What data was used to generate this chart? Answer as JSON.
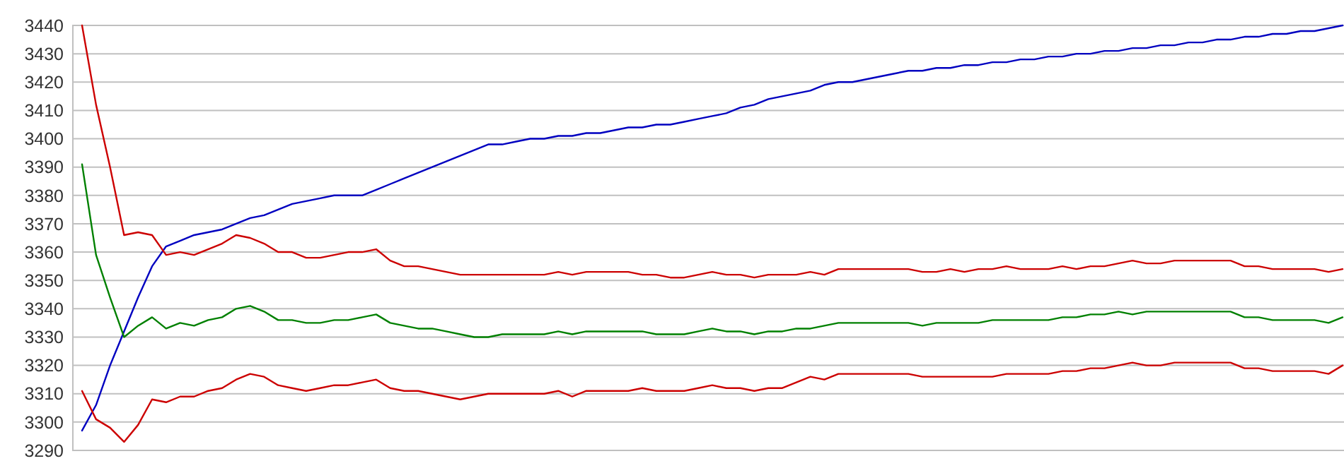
{
  "chart_data": {
    "type": "line",
    "categories": [
      null,
      null,
      null,
      null,
      null,
      null,
      null,
      null,
      null,
      null,
      null,
      null,
      null,
      null,
      null,
      null,
      null,
      null,
      null,
      null,
      null,
      null,
      null,
      null,
      null,
      null,
      null,
      null,
      null,
      null,
      null,
      null,
      null,
      null,
      null,
      null,
      null,
      null,
      null,
      null,
      null,
      null,
      null,
      null,
      null,
      null,
      null,
      null,
      null,
      null,
      null,
      null,
      null,
      null,
      null,
      null,
      null,
      null,
      null,
      null,
      null,
      null,
      null,
      null,
      null,
      null,
      null,
      null,
      null,
      null,
      null,
      null,
      null,
      null,
      null,
      null,
      null,
      null,
      null,
      null,
      null,
      null,
      null,
      null,
      null,
      null,
      null,
      null,
      null,
      null,
      null
    ],
    "ylim": [
      3290,
      3440
    ],
    "yticks": [
      3290,
      3300,
      3310,
      3320,
      3330,
      3340,
      3350,
      3360,
      3370,
      3380,
      3390,
      3400,
      3410,
      3420,
      3430,
      3440
    ],
    "grid": "y",
    "tick_labels": "y",
    "marker": "none",
    "line_style": "solid",
    "series": [
      {
        "color": "#0000c0",
        "values": [
          3297,
          3306,
          3320,
          3332,
          3344,
          3355,
          3362,
          3364,
          3366,
          3367,
          3368,
          3370,
          3372,
          3373,
          3375,
          3377,
          3378,
          3379,
          3380,
          3380,
          3380,
          3382,
          3384,
          3386,
          3388,
          3390,
          3392,
          3394,
          3396,
          3398,
          3398,
          3399,
          3400,
          3400,
          3401,
          3401,
          3402,
          3402,
          3403,
          3404,
          3404,
          3405,
          3405,
          3406,
          3407,
          3408,
          3409,
          3411,
          3412,
          3414,
          3415,
          3416,
          3417,
          3419,
          3420,
          3420,
          3421,
          3422,
          3423,
          3424,
          3424,
          3425,
          3425,
          3426,
          3426,
          3427,
          3427,
          3428,
          3428,
          3429,
          3429,
          3430,
          3430,
          3431,
          3431,
          3432,
          3432,
          3433,
          3433,
          3434,
          3434,
          3435,
          3435,
          3436,
          3436,
          3437,
          3437,
          3438,
          3438,
          3439,
          3440
        ]
      },
      {
        "color": "#cc0000",
        "values": [
          3440,
          3412,
          3390,
          3366,
          3367,
          3366,
          3359,
          3360,
          3359,
          3361,
          3363,
          3366,
          3365,
          3363,
          3360,
          3360,
          3358,
          3358,
          3359,
          3360,
          3360,
          3361,
          3357,
          3355,
          3355,
          3354,
          3353,
          3352,
          3352,
          3352,
          3352,
          3352,
          3352,
          3352,
          3353,
          3352,
          3353,
          3353,
          3353,
          3353,
          3352,
          3352,
          3351,
          3351,
          3352,
          3353,
          3352,
          3352,
          3351,
          3352,
          3352,
          3352,
          3353,
          3352,
          3354,
          3354,
          3354,
          3354,
          3354,
          3354,
          3353,
          3353,
          3354,
          3353,
          3354,
          3354,
          3355,
          3354,
          3354,
          3354,
          3355,
          3354,
          3355,
          3355,
          3356,
          3357,
          3356,
          3356,
          3357,
          3357,
          3357,
          3357,
          3357,
          3355,
          3355,
          3354,
          3354,
          3354,
          3354,
          3353,
          3354
        ]
      },
      {
        "color": "#008000",
        "values": [
          3391,
          3359,
          3344,
          3330,
          3334,
          3337,
          3333,
          3335,
          3334,
          3336,
          3337,
          3340,
          3341,
          3339,
          3336,
          3336,
          3335,
          3335,
          3336,
          3336,
          3337,
          3338,
          3335,
          3334,
          3333,
          3333,
          3332,
          3331,
          3330,
          3330,
          3331,
          3331,
          3331,
          3331,
          3332,
          3331,
          3332,
          3332,
          3332,
          3332,
          3332,
          3331,
          3331,
          3331,
          3332,
          3333,
          3332,
          3332,
          3331,
          3332,
          3332,
          3333,
          3333,
          3334,
          3335,
          3335,
          3335,
          3335,
          3335,
          3335,
          3334,
          3335,
          3335,
          3335,
          3335,
          3336,
          3336,
          3336,
          3336,
          3336,
          3337,
          3337,
          3338,
          3338,
          3339,
          3338,
          3339,
          3339,
          3339,
          3339,
          3339,
          3339,
          3339,
          3337,
          3337,
          3336,
          3336,
          3336,
          3336,
          3335,
          3337
        ]
      },
      {
        "color": "#cc0000",
        "values": [
          3311,
          3301,
          3298,
          3293,
          3299,
          3308,
          3307,
          3309,
          3309,
          3311,
          3312,
          3315,
          3317,
          3316,
          3313,
          3312,
          3311,
          3312,
          3313,
          3313,
          3314,
          3315,
          3312,
          3311,
          3311,
          3310,
          3309,
          3308,
          3309,
          3310,
          3310,
          3310,
          3310,
          3310,
          3311,
          3309,
          3311,
          3311,
          3311,
          3311,
          3312,
          3311,
          3311,
          3311,
          3312,
          3313,
          3312,
          3312,
          3311,
          3312,
          3312,
          3314,
          3316,
          3315,
          3317,
          3317,
          3317,
          3317,
          3317,
          3317,
          3316,
          3316,
          3316,
          3316,
          3316,
          3316,
          3317,
          3317,
          3317,
          3317,
          3318,
          3318,
          3319,
          3319,
          3320,
          3321,
          3320,
          3320,
          3321,
          3321,
          3321,
          3321,
          3321,
          3319,
          3319,
          3318,
          3318,
          3318,
          3318,
          3317,
          3320
        ]
      }
    ]
  }
}
